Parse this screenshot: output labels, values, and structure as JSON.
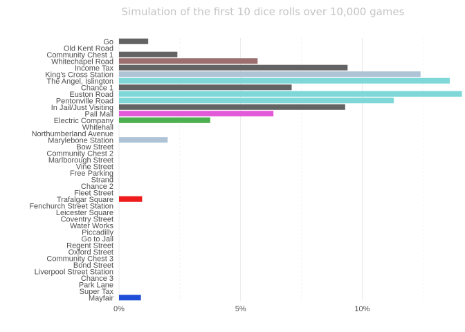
{
  "chart_data": {
    "type": "bar",
    "orientation": "horizontal",
    "title": "Simulation of the first 10 dice rolls over 10,000 games",
    "xlabel": "",
    "ylabel": "",
    "xlim": [
      0,
      14
    ],
    "x_ticks": [
      0,
      5,
      10
    ],
    "x_tick_labels": [
      "0%",
      "5%",
      "10%"
    ],
    "grid": "vertical",
    "categories": [
      "Go",
      "Old Kent Road",
      "Community Chest 1",
      "Whitechapel Road",
      "Income Tax",
      "King's Cross Station",
      "The Angel, Islington",
      "Chance 1",
      "Euston Road",
      "Pentonville Road",
      "In Jail/Just Visiting",
      "Pall Mall",
      "Electric Company",
      "Whitehall",
      "Northumberland Avenue",
      "Marylebone Station",
      "Bow Street",
      "Community Chest 2",
      "Marlborough Street",
      "Vine Street",
      "Free Parking",
      "Strand",
      "Chance 2",
      "Fleet Street",
      "Trafalgar Square",
      "Fenchurch Street Station",
      "Leicester Square",
      "Coventry Street",
      "Water Works",
      "Piccadilly",
      "Go to Jail",
      "Regent Street",
      "Oxford Street",
      "Community Chest 3",
      "Bond Street",
      "Liverpool Street Station",
      "Chance 3",
      "Park Lane",
      "Super Tax",
      "Mayfair"
    ],
    "values": [
      1.2,
      0,
      2.4,
      5.7,
      9.4,
      12.4,
      13.6,
      7.1,
      14.1,
      11.3,
      9.3,
      6.35,
      3.75,
      0,
      0,
      2.0,
      0,
      0,
      0,
      0,
      0,
      0,
      0,
      0,
      0.95,
      0,
      0,
      0,
      0,
      0,
      0,
      0,
      0,
      0,
      0,
      0,
      0,
      0,
      0,
      0.9
    ],
    "colors": [
      "#636363",
      "#636363",
      "#636363",
      "#9c6f6f",
      "#636363",
      "#aec4d6",
      "#7fd7d8",
      "#636363",
      "#7fd7d8",
      "#7fd7d8",
      "#636363",
      "#e35ad9",
      "#4caf50",
      "#636363",
      "#636363",
      "#aec4d6",
      "#636363",
      "#636363",
      "#636363",
      "#636363",
      "#636363",
      "#636363",
      "#636363",
      "#636363",
      "#ee1c1c",
      "#aec4d6",
      "#636363",
      "#636363",
      "#636363",
      "#636363",
      "#636363",
      "#636363",
      "#636363",
      "#636363",
      "#636363",
      "#aec4d6",
      "#636363",
      "#636363",
      "#636363",
      "#1f4fd6"
    ]
  }
}
